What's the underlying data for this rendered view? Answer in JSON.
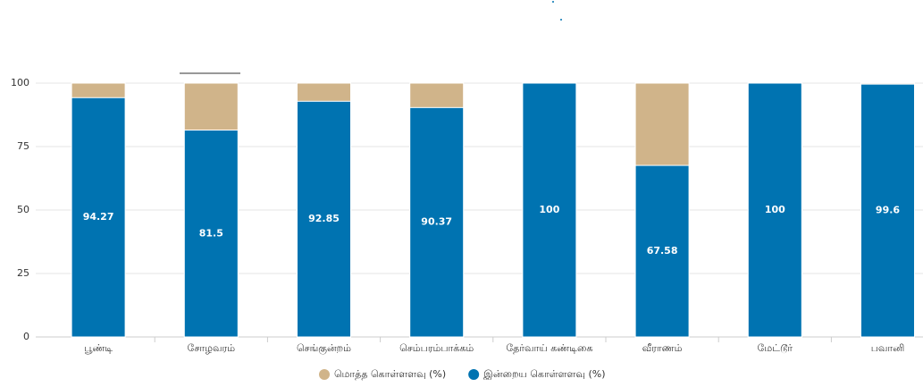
{
  "chart_data": {
    "type": "bar",
    "mode": "overlap",
    "categories": [
      "பூண்டி",
      "சோழவரம்",
      "செங்குன்றம்",
      "செம்பரம்பாக்கம்",
      "தேர்வாய் கண்டிகை",
      "வீராணம்",
      "மேட்டூர்",
      "பவானி"
    ],
    "series": [
      {
        "name": "மொத்த கொள்ளளவு (%)",
        "color": "#d0b48a",
        "values": [
          100,
          100,
          100,
          100,
          100,
          100,
          100,
          100
        ]
      },
      {
        "name": "இன்றைய கொள்ளளவு (%)",
        "color": "#0073b1",
        "values": [
          94.27,
          81.5,
          92.85,
          90.37,
          100,
          67.58,
          100,
          99.6
        ],
        "data_labels": true
      }
    ],
    "ylim": [
      0,
      100
    ],
    "yticks": [
      0,
      25,
      50,
      75,
      100
    ],
    "grid": true,
    "legend": "bottom"
  }
}
